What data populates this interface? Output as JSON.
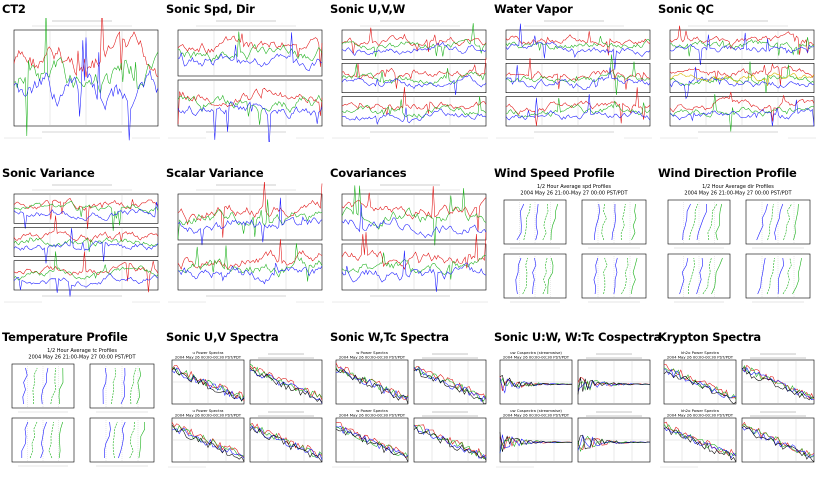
{
  "gallery": {
    "cells": [
      {
        "title": "CT2",
        "kind": "timeseries",
        "panels": 1
      },
      {
        "title": "Sonic Spd, Dir",
        "kind": "timeseries",
        "panels": 2
      },
      {
        "title": "Sonic U,V,W",
        "kind": "timeseries",
        "panels": 3
      },
      {
        "title": "Water Vapor",
        "kind": "timeseries",
        "panels": 3
      },
      {
        "title": "Sonic QC",
        "kind": "timeseries",
        "panels": 3
      },
      {
        "title": "Sonic Variance",
        "kind": "timeseries",
        "panels": 3
      },
      {
        "title": "Scalar Variance",
        "kind": "timeseries",
        "panels": 2
      },
      {
        "title": "Covariances",
        "kind": "timeseries",
        "panels": 2
      },
      {
        "title": "Wind Speed Profile",
        "kind": "profile",
        "header": [
          "1/2 Hour Average spd Profiles",
          "2004 May 26 21:00-May 27 00:00 PST/PDT"
        ]
      },
      {
        "title": "Wind Direction Profile",
        "kind": "profile",
        "header": [
          "1/2 Hour Average dir Profiles",
          "2004 May 26 21:00-May 27 00:00 PST/PDT"
        ]
      },
      {
        "title": "Temperature Profile",
        "kind": "profile",
        "header": [
          "1/2 Hour Average tc Profiles",
          "2004 May 26 21:00-May 27 00:00 PST/PDT"
        ]
      },
      {
        "title": "Sonic U,V Spectra",
        "kind": "spectra",
        "header": [
          "u Power Spectra",
          "2004 May 26 00:00-00:30 PST/PDT"
        ]
      },
      {
        "title": "Sonic W,Tc Spectra",
        "kind": "spectra",
        "header": [
          "w Power Spectra",
          "2004 May 26 00:00-00:30 PST/PDT"
        ]
      },
      {
        "title": "Sonic U:W, W:Tc Cospectra",
        "kind": "spectra",
        "header": [
          "uw Cospectra (streamwise)",
          "2004 May 26 00:00-00:30 PST/PDT"
        ]
      },
      {
        "title": "Krypton Spectra",
        "kind": "spectra",
        "header": [
          "kh2o Power Spectra",
          "2004 May 26 00:00-00:30 PST/PDT"
        ]
      }
    ]
  },
  "colors": {
    "blue": "#1a1aff",
    "green": "#19b019",
    "red": "#e01010",
    "yellow": "#d8b800",
    "axis": "#000000",
    "grid": "#bbbbbb"
  }
}
